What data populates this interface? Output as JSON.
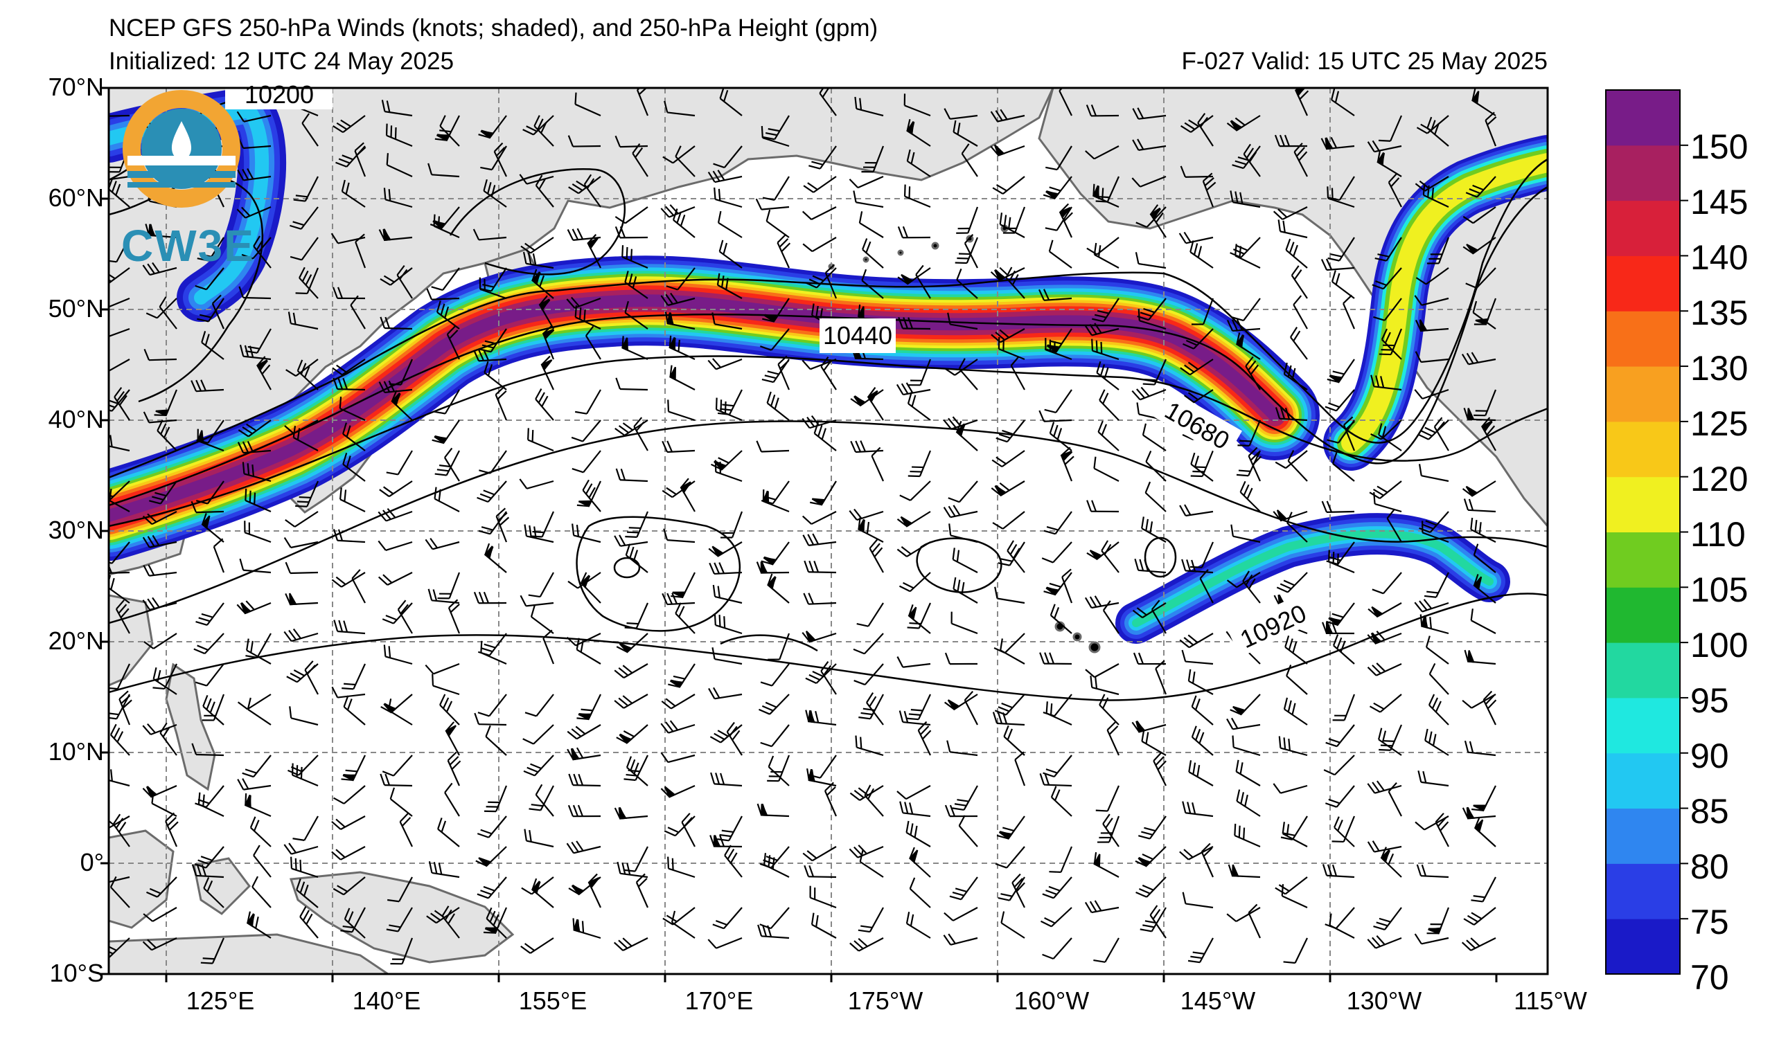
{
  "header": {
    "title": "NCEP GFS 250-hPa Winds (knots; shaded), and 250-hPa Height (gpm)",
    "initialized": "Initialized: 12 UTC 24 May 2025",
    "valid": "F-027  Valid: 15 UTC 25 May 2025"
  },
  "logo": {
    "text": "CW3E",
    "icon": "cw3e-logo-icon"
  },
  "axes": {
    "lat_labels": [
      "70°N",
      "60°N",
      "50°N",
      "40°N",
      "30°N",
      "20°N",
      "10°N",
      "0°",
      "10°S"
    ],
    "lon_labels": [
      "125°E",
      "140°E",
      "155°E",
      "170°E",
      "175°W",
      "160°W",
      "145°W",
      "130°W",
      "115°W"
    ]
  },
  "contours": {
    "labels": [
      "10200",
      "10440",
      "10680",
      "10920"
    ]
  },
  "colorbar": {
    "labels": [
      "150",
      "145",
      "140",
      "135",
      "130",
      "125",
      "120",
      "110",
      "105",
      "100",
      "95",
      "90",
      "85",
      "80",
      "75",
      "70"
    ],
    "bins": [
      70,
      75,
      80,
      85,
      90,
      95,
      100,
      105,
      110,
      120,
      125,
      130,
      135,
      140,
      145,
      150,
      155
    ],
    "colors": [
      "#1a1ac8",
      "#2a3ee6",
      "#2f86f0",
      "#22c8f2",
      "#1fe8e0",
      "#22d8a0",
      "#20b830",
      "#70cc20",
      "#f0f020",
      "#f8c818",
      "#f8a020",
      "#f87018",
      "#f82818",
      "#d8203a",
      "#a82060",
      "#781c88"
    ]
  },
  "colors": {
    "land": "#e3e3e3",
    "coast": "#6b6b6b",
    "grid": "#888888"
  }
}
